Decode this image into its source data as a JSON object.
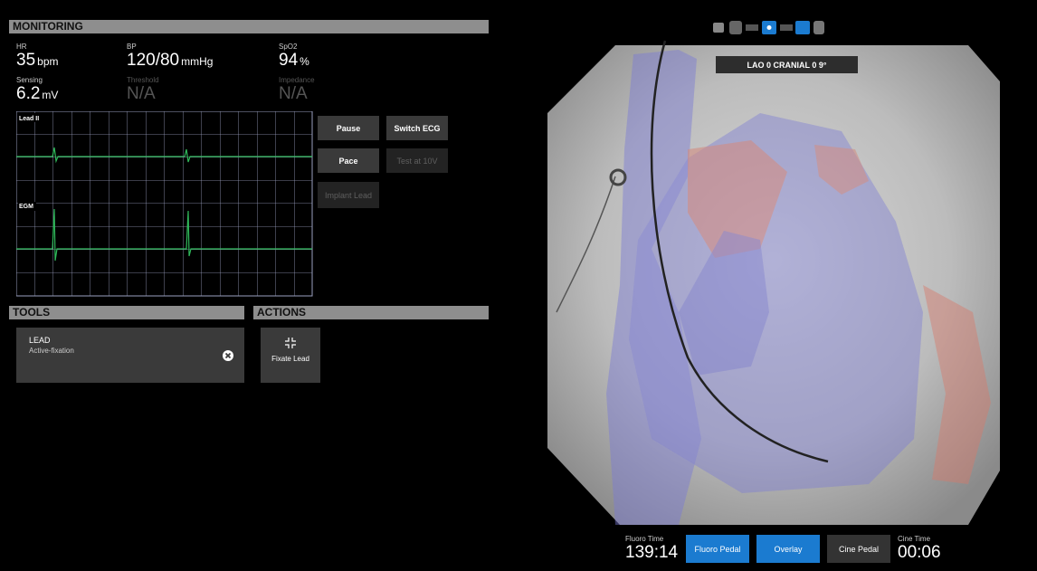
{
  "monitoring": {
    "title": "MONITORING",
    "vitals": [
      {
        "label": "HR",
        "value": "35",
        "unit": "bpm"
      },
      {
        "label": "BP",
        "value": "120/80",
        "unit": "mmHg"
      },
      {
        "label": "SpO2",
        "value": "94",
        "unit": "%"
      },
      {
        "label": "Sensing",
        "value": "6.2",
        "unit": "mV"
      },
      {
        "label": "Threshold",
        "value": "N/A"
      },
      {
        "label": "Impedance",
        "value": "N/A"
      }
    ],
    "ecg": {
      "lead_label": "Lead II",
      "egm_label": "EGM"
    },
    "buttons": [
      "Pause",
      "Switch ECG",
      "Pace",
      "Test at 10V",
      "Implant Lead"
    ]
  },
  "tools": {
    "title": "TOOLS",
    "card": {
      "title": "LEAD",
      "subtitle": "Active-fixation"
    }
  },
  "actions": {
    "title": "ACTIONS",
    "button": "Fixate Lead"
  },
  "fluoro": {
    "view_label": "LAO 0 CRANIAL 0 9°",
    "fluoro_time_label": "Fluoro Time",
    "fluoro_time": "139:14",
    "buttons": [
      "Fluoro Pedal",
      "Overlay",
      "Cine Pedal"
    ],
    "cine_time_label": "Cine Time",
    "cine_time": "00:06"
  }
}
